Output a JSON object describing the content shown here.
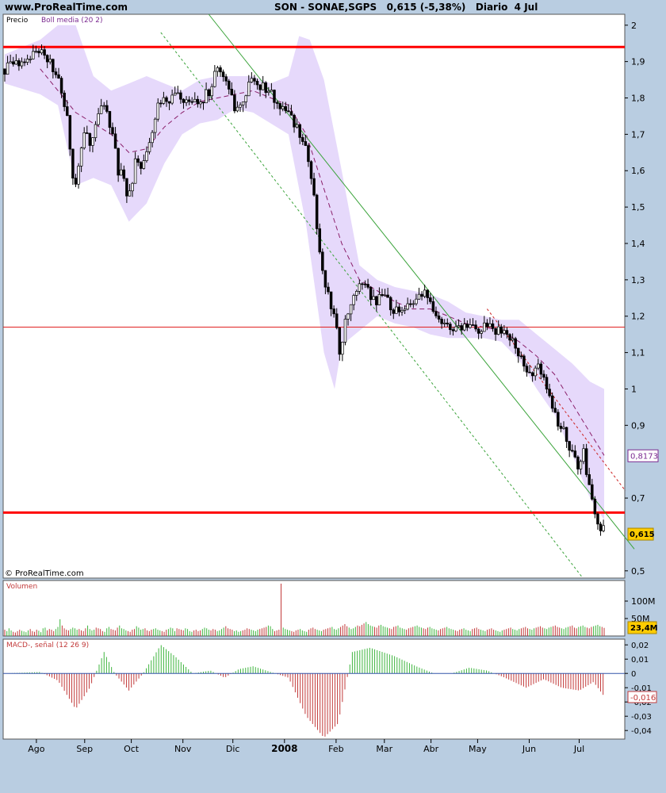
{
  "header": {
    "site": "www.ProRealTime.com",
    "title": "SON - SONAE,SGPS   0,615 (-5,38%)   Diario  4 Jul"
  },
  "colors": {
    "background": "#b9cde1",
    "panel": "#ffffff",
    "band": "#e6d9fb",
    "middle_band": "#8a1f6a",
    "resistance_thick": "#ff0000",
    "resistance_thin": "#e02020",
    "trend": "#3aa33a",
    "macd_up": "#3fb53f",
    "macd_down": "#c23a3a",
    "last_price_tag": "#ffcc00"
  },
  "chart_data": [
    {
      "type": "candlestick",
      "panel": "price",
      "title": "Precio",
      "legend": [
        "Boll media (20 2)"
      ],
      "copyright": "© ProRealTime.com",
      "ylim": [
        0.48,
        2.03
      ],
      "yticks": [
        2,
        1.9,
        1.8,
        1.7,
        1.6,
        1.5,
        1.4,
        1.3,
        1.2,
        1.1,
        1,
        0.9,
        0.7,
        0.5
      ],
      "ytick_labels": [
        "2",
        "1,9",
        "1,8",
        "1,7",
        "1,6",
        "1,5",
        "1,4",
        "1,3",
        "1,2",
        "1,1",
        "1",
        "0,9",
        "0,7",
        "0,5"
      ],
      "x_labels": [
        "Ago",
        "Sep",
        "Oct",
        "Nov",
        "Dic",
        "2008",
        "Feb",
        "Mar",
        "Abr",
        "May",
        "Jun",
        "Jul"
      ],
      "last_price": 0.615,
      "last_price_label": "0,615",
      "boll_value": 0.8173,
      "boll_value_label": "0,8173",
      "horizontal_levels": [
        1.94,
        0.66,
        1.17
      ],
      "price_path": [
        [
          0,
          1.88
        ],
        [
          12,
          1.9
        ],
        [
          20,
          1.93
        ],
        [
          26,
          1.9
        ],
        [
          32,
          1.82
        ],
        [
          36,
          1.72
        ],
        [
          38,
          1.6
        ],
        [
          40,
          1.56
        ],
        [
          44,
          1.7
        ],
        [
          48,
          1.68
        ],
        [
          52,
          1.74
        ],
        [
          56,
          1.78
        ],
        [
          60,
          1.72
        ],
        [
          64,
          1.6
        ],
        [
          67,
          1.58
        ],
        [
          70,
          1.52
        ],
        [
          74,
          1.63
        ],
        [
          78,
          1.61
        ],
        [
          82,
          1.68
        ],
        [
          86,
          1.78
        ],
        [
          92,
          1.8
        ],
        [
          100,
          1.8
        ],
        [
          108,
          1.78
        ],
        [
          116,
          1.82
        ],
        [
          120,
          1.89
        ],
        [
          126,
          1.84
        ],
        [
          130,
          1.75
        ],
        [
          134,
          1.8
        ],
        [
          140,
          1.85
        ],
        [
          148,
          1.82
        ],
        [
          154,
          1.79
        ],
        [
          160,
          1.75
        ],
        [
          166,
          1.71
        ],
        [
          172,
          1.62
        ],
        [
          175,
          1.5
        ],
        [
          178,
          1.35
        ],
        [
          182,
          1.27
        ],
        [
          186,
          1.2
        ],
        [
          189,
          1.1
        ],
        [
          192,
          1.19
        ],
        [
          196,
          1.26
        ],
        [
          202,
          1.3
        ],
        [
          208,
          1.24
        ],
        [
          214,
          1.25
        ],
        [
          220,
          1.21
        ],
        [
          226,
          1.22
        ],
        [
          232,
          1.24
        ],
        [
          238,
          1.27
        ],
        [
          242,
          1.2
        ],
        [
          248,
          1.18
        ],
        [
          254,
          1.16
        ],
        [
          260,
          1.17
        ],
        [
          266,
          1.16
        ],
        [
          272,
          1.17
        ],
        [
          278,
          1.16
        ],
        [
          284,
          1.15
        ],
        [
          288,
          1.12
        ],
        [
          292,
          1.08
        ],
        [
          296,
          1.03
        ],
        [
          300,
          1.07
        ],
        [
          304,
          1.03
        ],
        [
          308,
          0.96
        ],
        [
          312,
          0.9
        ],
        [
          316,
          0.88
        ],
        [
          320,
          0.82
        ],
        [
          324,
          0.78
        ],
        [
          326,
          0.85
        ],
        [
          328,
          0.76
        ],
        [
          332,
          0.67
        ],
        [
          336,
          0.615
        ]
      ],
      "boll_middle": [
        [
          20,
          1.88
        ],
        [
          30,
          1.82
        ],
        [
          40,
          1.76
        ],
        [
          50,
          1.73
        ],
        [
          60,
          1.7
        ],
        [
          70,
          1.65
        ],
        [
          80,
          1.66
        ],
        [
          90,
          1.72
        ],
        [
          100,
          1.76
        ],
        [
          110,
          1.79
        ],
        [
          120,
          1.8
        ],
        [
          130,
          1.81
        ],
        [
          140,
          1.82
        ],
        [
          150,
          1.8
        ],
        [
          160,
          1.78
        ],
        [
          170,
          1.7
        ],
        [
          180,
          1.55
        ],
        [
          190,
          1.4
        ],
        [
          200,
          1.3
        ],
        [
          210,
          1.27
        ],
        [
          220,
          1.24
        ],
        [
          230,
          1.22
        ],
        [
          240,
          1.22
        ],
        [
          250,
          1.2
        ],
        [
          260,
          1.18
        ],
        [
          270,
          1.17
        ],
        [
          280,
          1.16
        ],
        [
          290,
          1.13
        ],
        [
          300,
          1.09
        ],
        [
          310,
          1.04
        ],
        [
          320,
          0.96
        ],
        [
          330,
          0.88
        ],
        [
          338,
          0.8173
        ]
      ],
      "boll_upper": [
        [
          0,
          1.92
        ],
        [
          20,
          1.96
        ],
        [
          30,
          2.0
        ],
        [
          40,
          2.0
        ],
        [
          50,
          1.86
        ],
        [
          60,
          1.82
        ],
        [
          70,
          1.84
        ],
        [
          80,
          1.86
        ],
        [
          90,
          1.84
        ],
        [
          100,
          1.82
        ],
        [
          110,
          1.85
        ],
        [
          120,
          1.86
        ],
        [
          140,
          1.86
        ],
        [
          150,
          1.84
        ],
        [
          160,
          1.86
        ],
        [
          166,
          1.97
        ],
        [
          172,
          1.96
        ],
        [
          180,
          1.85
        ],
        [
          190,
          1.6
        ],
        [
          200,
          1.34
        ],
        [
          210,
          1.3
        ],
        [
          220,
          1.28
        ],
        [
          230,
          1.27
        ],
        [
          240,
          1.26
        ],
        [
          250,
          1.24
        ],
        [
          260,
          1.21
        ],
        [
          270,
          1.2
        ],
        [
          280,
          1.19
        ],
        [
          290,
          1.19
        ],
        [
          300,
          1.15
        ],
        [
          310,
          1.11
        ],
        [
          320,
          1.07
        ],
        [
          330,
          1.02
        ],
        [
          338,
          1.0
        ]
      ],
      "boll_lower": [
        [
          0,
          1.84
        ],
        [
          20,
          1.81
        ],
        [
          30,
          1.78
        ],
        [
          40,
          1.56
        ],
        [
          50,
          1.58
        ],
        [
          60,
          1.56
        ],
        [
          70,
          1.46
        ],
        [
          80,
          1.51
        ],
        [
          90,
          1.62
        ],
        [
          100,
          1.7
        ],
        [
          110,
          1.73
        ],
        [
          120,
          1.74
        ],
        [
          130,
          1.77
        ],
        [
          140,
          1.76
        ],
        [
          150,
          1.73
        ],
        [
          160,
          1.7
        ],
        [
          170,
          1.45
        ],
        [
          180,
          1.1
        ],
        [
          186,
          1.0
        ],
        [
          190,
          1.12
        ],
        [
          200,
          1.16
        ],
        [
          210,
          1.2
        ],
        [
          220,
          1.18
        ],
        [
          230,
          1.17
        ],
        [
          240,
          1.15
        ],
        [
          250,
          1.14
        ],
        [
          260,
          1.14
        ],
        [
          270,
          1.14
        ],
        [
          280,
          1.13
        ],
        [
          290,
          1.08
        ],
        [
          300,
          1.0
        ],
        [
          310,
          0.93
        ],
        [
          320,
          0.82
        ],
        [
          330,
          0.7
        ],
        [
          338,
          0.64
        ]
      ],
      "trend_lines": [
        {
          "style": "solid",
          "color": "#3aa33a",
          "from": [
            115,
            2.03
          ],
          "to": [
            355,
            0.56
          ]
        },
        {
          "style": "dotted",
          "color": "#3aa33a",
          "from": [
            88,
            1.98
          ],
          "to": [
            326,
            0.48
          ]
        },
        {
          "style": "dotted",
          "color": "#cc2222",
          "from": [
            272,
            1.22
          ],
          "to": [
            350,
            0.72
          ]
        }
      ]
    },
    {
      "type": "bar",
      "panel": "volume",
      "title": "Volumen",
      "ylim": [
        0,
        150
      ],
      "yticks": [
        100,
        50
      ],
      "ytick_labels": [
        "100M",
        "50M"
      ],
      "last_value_label": "23,4M",
      "values": [
        18,
        14,
        22,
        16,
        12,
        10,
        14,
        18,
        15,
        13,
        11,
        16,
        20,
        14,
        12,
        18,
        15,
        11,
        22,
        24,
        16,
        20,
        18,
        14,
        20,
        26,
        48,
        30,
        22,
        18,
        16,
        20,
        24,
        22,
        18,
        20,
        16,
        14,
        22,
        30,
        20,
        16,
        18,
        24,
        22,
        20,
        14,
        12,
        22,
        26,
        20,
        18,
        16,
        24,
        30,
        22,
        20,
        16,
        14,
        12,
        18,
        20,
        28,
        24,
        18,
        20,
        22,
        16,
        14,
        18,
        20,
        22,
        18,
        16,
        14,
        12,
        18,
        20,
        24,
        22,
        14,
        22,
        20,
        18,
        16,
        22,
        20,
        14,
        12,
        16,
        18,
        14,
        16,
        20,
        24,
        22,
        18,
        16,
        20,
        18,
        14,
        16,
        20,
        24,
        28,
        22,
        20,
        18,
        14,
        16,
        12,
        14,
        16,
        18,
        22,
        20,
        18,
        16,
        14,
        18,
        20,
        22,
        24,
        26,
        30,
        28,
        20,
        14,
        16,
        18,
        150,
        24,
        20,
        18,
        16,
        14,
        12,
        16,
        18,
        20,
        16,
        14,
        12,
        18,
        22,
        24,
        20,
        18,
        16,
        14,
        18,
        20,
        22,
        24,
        26,
        20,
        18,
        22,
        26,
        30,
        34,
        28,
        24,
        20,
        22,
        26,
        30,
        28,
        32,
        36,
        40,
        34,
        30,
        28,
        26,
        24,
        30,
        32,
        28,
        26,
        24,
        22,
        20,
        26,
        28,
        30,
        24,
        22,
        20,
        18,
        22,
        24,
        26,
        28,
        30,
        26,
        24,
        22,
        20,
        24,
        26,
        22,
        20,
        18,
        16,
        20,
        22,
        24,
        26,
        22,
        20,
        18,
        16,
        14,
        18,
        20,
        22,
        18,
        16,
        14,
        20,
        22,
        24,
        20,
        18,
        16,
        14,
        18,
        20,
        22,
        18,
        16,
        14,
        12,
        16,
        18,
        20,
        22,
        24,
        20,
        18,
        16,
        20,
        22,
        24,
        26,
        22,
        20,
        18,
        22,
        24,
        26,
        28,
        24,
        22,
        20,
        24,
        26,
        28,
        30,
        26,
        24,
        22,
        20,
        24,
        26,
        28,
        30,
        24,
        22,
        26,
        28,
        30,
        26,
        24,
        22,
        26,
        28,
        30,
        32,
        28,
        26,
        23.4
      ]
    },
    {
      "type": "bar",
      "panel": "macd",
      "title": "MACD-, señal (12 26 9)",
      "ylim": [
        -0.046,
        0.024
      ],
      "yticks": [
        0.02,
        0.01,
        0,
        -0.01,
        -0.02,
        -0.03,
        -0.04
      ],
      "ytick_labels": [
        "0,02",
        "0,01",
        "0",
        "-0,01",
        "-0,02",
        "-0,03",
        "-0,04"
      ],
      "last_value_label": "-0,016",
      "x_range": [
        0,
        338
      ]
    }
  ]
}
